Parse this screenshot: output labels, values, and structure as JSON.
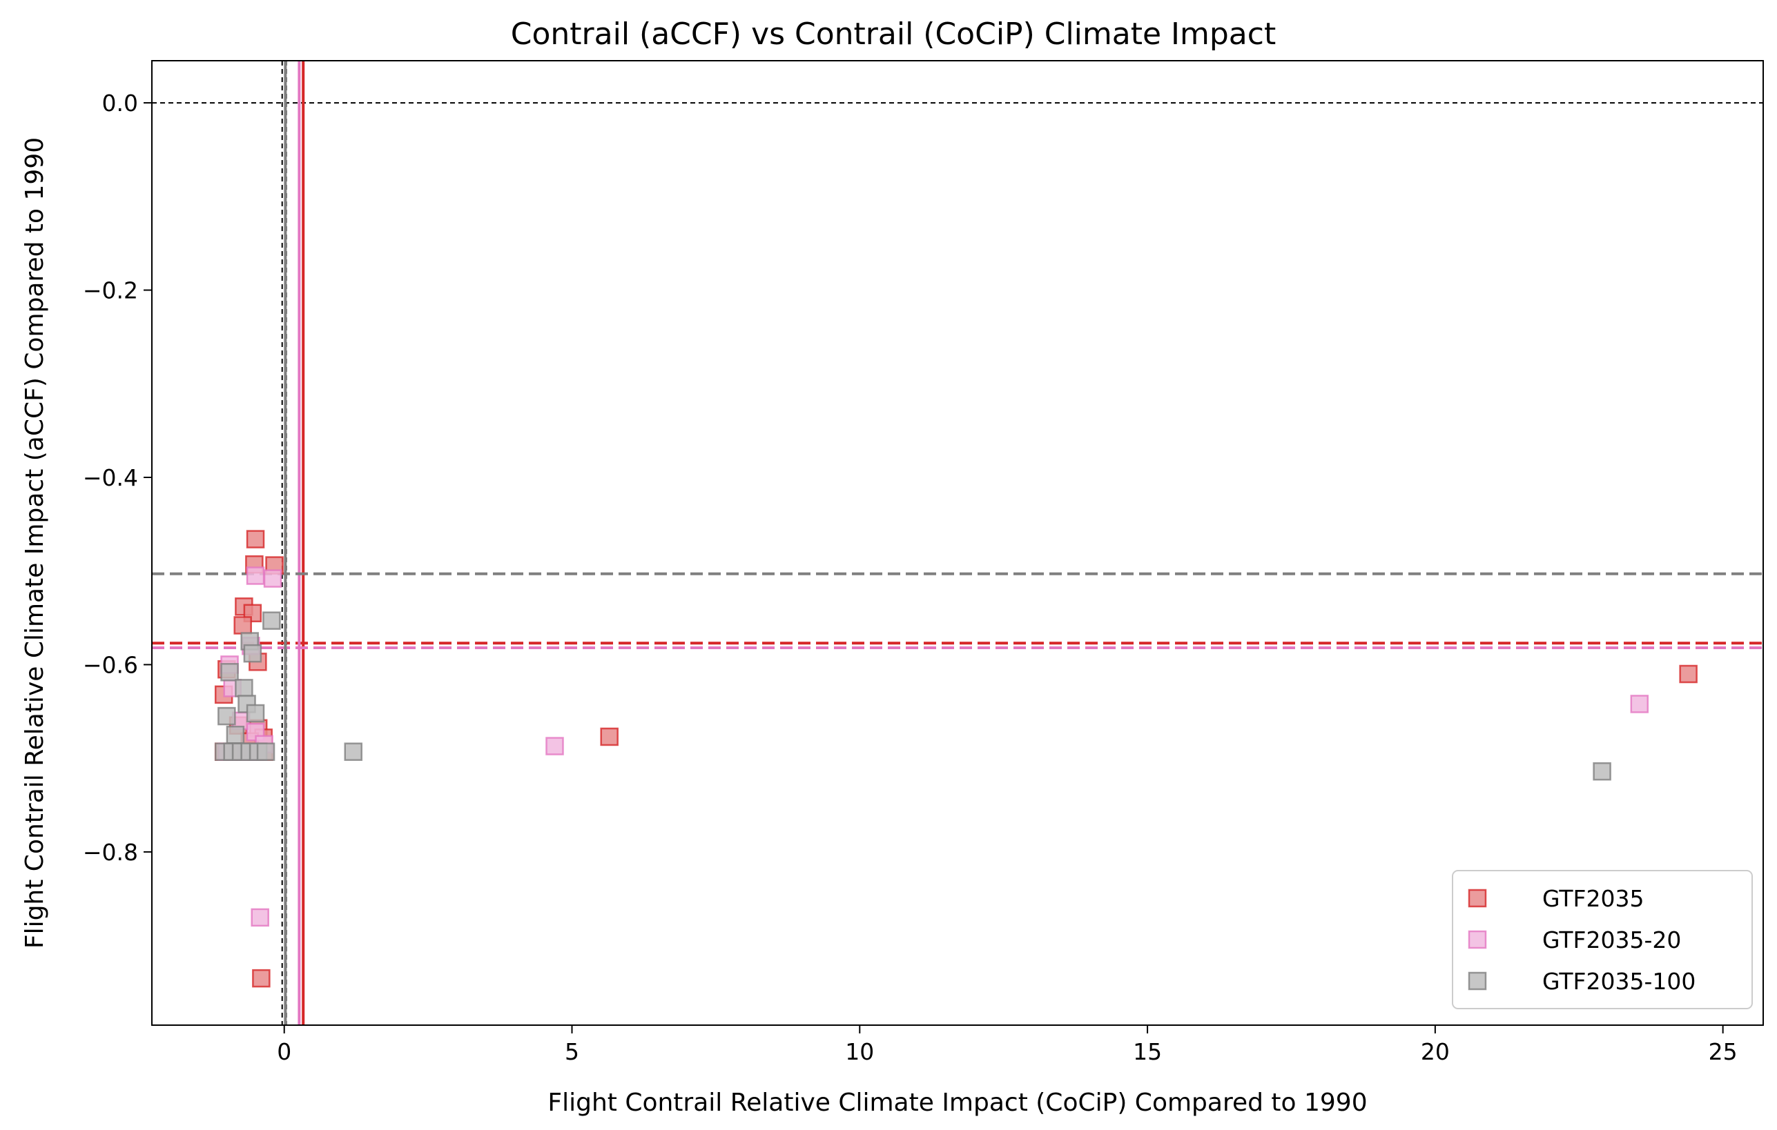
{
  "chart_data": {
    "type": "scatter",
    "title": "Contrail (aCCF) vs Contrail (CoCiP) Climate Impact",
    "xlabel": "Flight Contrail Relative Climate Impact (CoCiP) Compared to 1990",
    "ylabel": "Flight Contrail Relative Climate Impact (aCCF) Compared to 1990",
    "xlim": [
      -2.3,
      25.7
    ],
    "ylim": [
      -0.985,
      0.045
    ],
    "xticks": [
      0,
      5,
      10,
      15,
      20,
      25
    ],
    "yticks": [
      0.0,
      -0.2,
      -0.4,
      -0.6,
      -0.8
    ],
    "xtick_labels": [
      "0",
      "5",
      "10",
      "15",
      "20",
      "25"
    ],
    "ytick_labels": [
      "0.0",
      "−0.2",
      "−0.4",
      "−0.6",
      "−0.8"
    ],
    "grid": false,
    "legend_position": "lower-right",
    "reference_lines": {
      "zero_color": "#000000",
      "vertical_x": [
        0,
        0
      ],
      "horizontal_y": [
        0
      ]
    },
    "series": [
      {
        "name": "GTF2035",
        "color": "#d62728",
        "fill": "#e88b8c",
        "mean_x": 0.33,
        "mean_y": -0.577,
        "points": [
          [
            -0.5,
            -0.466
          ],
          [
            -0.52,
            -0.493
          ],
          [
            -0.17,
            -0.494
          ],
          [
            -0.7,
            -0.538
          ],
          [
            -0.55,
            -0.545
          ],
          [
            -0.72,
            -0.558
          ],
          [
            -0.46,
            -0.597
          ],
          [
            -1.0,
            -0.605
          ],
          [
            -1.05,
            -0.632
          ],
          [
            -0.8,
            -0.665
          ],
          [
            -0.45,
            -0.668
          ],
          [
            -0.36,
            -0.678
          ],
          [
            -0.6,
            -0.682
          ],
          [
            -1.05,
            -0.693
          ],
          [
            -0.85,
            -0.693
          ],
          [
            -0.7,
            -0.693
          ],
          [
            -0.5,
            -0.693
          ],
          [
            -0.35,
            -0.693
          ],
          [
            -0.4,
            -0.935
          ],
          [
            5.65,
            -0.677
          ],
          [
            24.4,
            -0.61
          ]
        ]
      },
      {
        "name": "GTF2035-20",
        "color": "#e377c2",
        "fill": "#f1b8df",
        "mean_x": 0.26,
        "mean_y": -0.582,
        "points": [
          [
            -0.5,
            -0.505
          ],
          [
            -0.2,
            -0.508
          ],
          [
            -0.58,
            -0.58
          ],
          [
            -0.95,
            -0.6
          ],
          [
            -0.9,
            -0.625
          ],
          [
            -0.75,
            -0.66
          ],
          [
            -0.5,
            -0.672
          ],
          [
            -0.35,
            -0.685
          ],
          [
            -1.0,
            -0.693
          ],
          [
            -0.8,
            -0.693
          ],
          [
            -0.65,
            -0.693
          ],
          [
            -0.45,
            -0.693
          ],
          [
            -0.42,
            -0.87
          ],
          [
            4.7,
            -0.687
          ],
          [
            23.55,
            -0.642
          ]
        ]
      },
      {
        "name": "GTF2035-100",
        "color": "#7f7f7f",
        "fill": "#bdbdbd",
        "mean_x": 0.02,
        "mean_y": -0.503,
        "points": [
          [
            -0.22,
            -0.553
          ],
          [
            -0.6,
            -0.575
          ],
          [
            -0.55,
            -0.588
          ],
          [
            -0.95,
            -0.608
          ],
          [
            -0.7,
            -0.625
          ],
          [
            -0.65,
            -0.642
          ],
          [
            -1.0,
            -0.655
          ],
          [
            -0.5,
            -0.652
          ],
          [
            -0.85,
            -0.675
          ],
          [
            -1.05,
            -0.693
          ],
          [
            -0.9,
            -0.693
          ],
          [
            -0.75,
            -0.693
          ],
          [
            -0.6,
            -0.693
          ],
          [
            -0.45,
            -0.693
          ],
          [
            -0.32,
            -0.693
          ],
          [
            1.2,
            -0.693
          ],
          [
            22.9,
            -0.714
          ]
        ]
      }
    ]
  }
}
